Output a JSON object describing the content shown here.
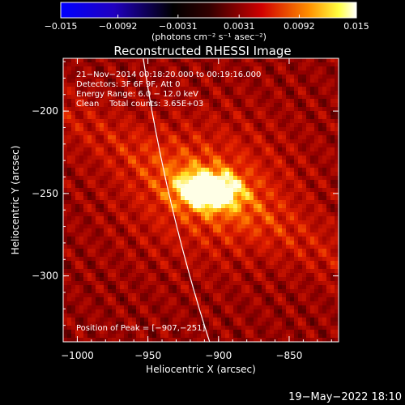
{
  "colorbar": {
    "ticks": [
      "-0.015",
      "-0.0092",
      "-0.0031",
      "0.0031",
      "0.0092",
      "0.015"
    ],
    "tick_values": [
      -0.015,
      -0.0092,
      -0.0031,
      0.0031,
      0.0092,
      0.015
    ],
    "range": [
      -0.015,
      0.015
    ],
    "unit_label": "(photons cm⁻² s⁻¹ asec⁻²)",
    "colors": [
      "#0000ff",
      "#000000",
      "#ff0000",
      "#ffff00",
      "#ffffff"
    ]
  },
  "chart_data": {
    "type": "heatmap",
    "title": "Reconstructed RHESSI Image",
    "xlabel": "Heliocentric X (arcsec)",
    "ylabel": "Heliocentric Y (arcsec)",
    "xlim": [
      -1010,
      -815
    ],
    "ylim": [
      -340,
      -168
    ],
    "x_ticks": [
      -1000,
      -950,
      -900,
      -850
    ],
    "y_ticks": [
      -200,
      -250,
      -300
    ],
    "x_tick_labels": [
      "−1000",
      "−950",
      "−900",
      "−850"
    ],
    "y_tick_labels": [
      "−200",
      "−250",
      "−300"
    ],
    "peak": {
      "x": -907,
      "y": -251
    },
    "limb_color": "#ffffff",
    "source": {
      "x": -907,
      "y": -248,
      "sigma_x": 14,
      "sigma_y": 7
    }
  },
  "info": {
    "line1": "21−Nov−2014 00:18:20.000 to 00:19:16.000",
    "line2": "Detectors: 3F 6F 9F, Att 0",
    "line3": "Energy Range: 6.0 − 12.0 keV",
    "line4": "Clean    Total counts: 3.65E+03"
  },
  "peak_label": "Position of Peak = [−907,−251]",
  "footer_date": "19−May−2022 18:10"
}
